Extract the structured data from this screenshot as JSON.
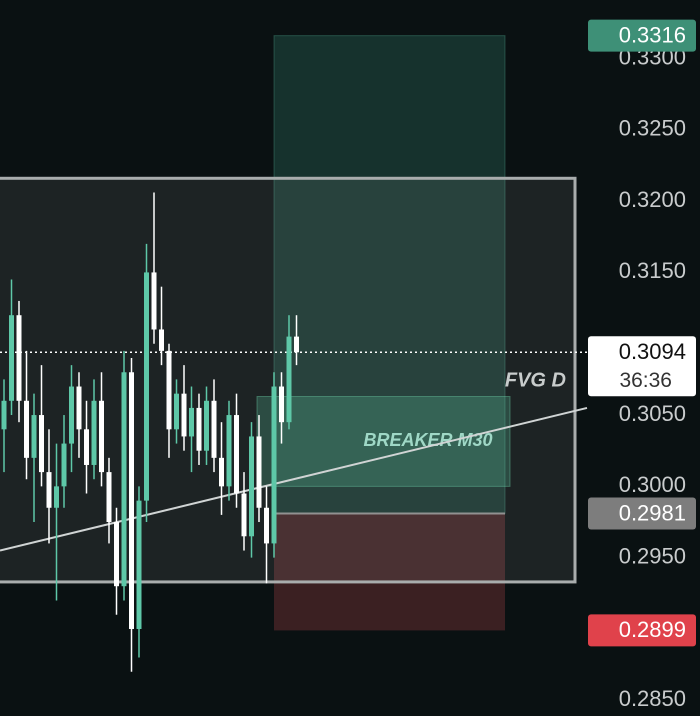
{
  "chart_data": {
    "type": "candlestick",
    "open": [
      0.304,
      0.306,
      0.312,
      0.306,
      0.302,
      0.305,
      0.301,
      0.2985,
      0.3,
      0.303,
      0.307,
      0.304,
      0.3015,
      0.306,
      0.301,
      0.2975,
      0.293,
      0.308,
      0.29,
      0.299,
      0.315,
      0.311,
      0.3095,
      0.304,
      0.3065,
      0.3035,
      0.3055,
      0.3025,
      0.306,
      0.302,
      0.3,
      0.305,
      0.2995,
      0.2965,
      0.3035,
      0.2985,
      0.296,
      0.307,
      0.3045,
      0.3105
    ],
    "high": [
      0.3075,
      0.3145,
      0.313,
      0.3095,
      0.3065,
      0.3085,
      0.304,
      0.303,
      0.305,
      0.3085,
      0.308,
      0.306,
      0.3075,
      0.308,
      0.302,
      0.2985,
      0.3095,
      0.309,
      0.3,
      0.317,
      0.3206,
      0.314,
      0.31,
      0.3075,
      0.3085,
      0.307,
      0.3065,
      0.307,
      0.3075,
      0.3045,
      0.306,
      0.3065,
      0.301,
      0.3045,
      0.305,
      0.3,
      0.308,
      0.308,
      0.312,
      0.312
    ],
    "low": [
      0.301,
      0.305,
      0.3045,
      0.3005,
      0.2975,
      0.3,
      0.296,
      0.292,
      0.2985,
      0.301,
      0.302,
      0.2995,
      0.3005,
      0.3,
      0.296,
      0.291,
      0.292,
      0.287,
      0.288,
      0.2975,
      0.31,
      0.3085,
      0.302,
      0.303,
      0.3025,
      0.301,
      0.3015,
      0.3015,
      0.301,
      0.298,
      0.299,
      0.2985,
      0.2955,
      0.295,
      0.2975,
      0.2932,
      0.295,
      0.303,
      0.304,
      0.3085
    ],
    "close": [
      0.306,
      0.312,
      0.306,
      0.302,
      0.305,
      0.301,
      0.2985,
      0.3,
      0.303,
      0.307,
      0.304,
      0.3015,
      0.306,
      0.301,
      0.2975,
      0.293,
      0.308,
      0.29,
      0.299,
      0.315,
      0.311,
      0.3095,
      0.304,
      0.3065,
      0.3035,
      0.3055,
      0.3025,
      0.306,
      0.302,
      0.3,
      0.305,
      0.2995,
      0.2965,
      0.3035,
      0.2985,
      0.296,
      0.307,
      0.3045,
      0.3105,
      0.3094
    ],
    "up_color": "#5ec8a8",
    "down_color": "#ffffff",
    "ylim": [
      0.2839,
      0.3341
    ],
    "yticks": [
      {
        "value": 0.33,
        "label": "0.3300"
      },
      {
        "value": 0.325,
        "label": "0.3250"
      },
      {
        "value": 0.32,
        "label": "0.3200"
      },
      {
        "value": 0.315,
        "label": "0.3150"
      },
      {
        "value": 0.305,
        "label": "0.3050"
      },
      {
        "value": 0.3,
        "label": "0.3000"
      },
      {
        "value": 0.295,
        "label": "0.2950"
      },
      {
        "value": 0.285,
        "label": "0.2850"
      }
    ],
    "range_box": {
      "high": 0.3216,
      "low": 0.2933
    },
    "position": {
      "target": 0.3316,
      "entry": 0.2981,
      "stop": 0.2899
    },
    "breaker": {
      "label": "BREAKER M30",
      "high": 0.3063,
      "low": 0.3
    },
    "fvg_label": "FVG D",
    "trendline": [
      0.2955,
      0.3055
    ],
    "last_price": 0.3094,
    "countdown": "36:36"
  }
}
